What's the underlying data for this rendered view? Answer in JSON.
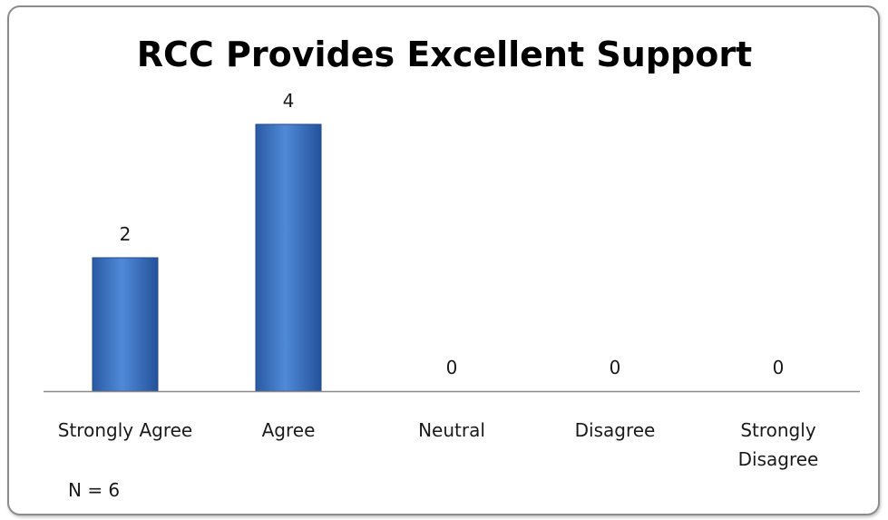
{
  "chart_data": {
    "type": "bar",
    "title": "RCC Provides Excellent Support",
    "categories": [
      "Strongly Agree",
      "Agree",
      "Neutral",
      "Disagree",
      "Strongly Disagree"
    ],
    "category_lines": [
      [
        "Strongly Agree"
      ],
      [
        "Agree"
      ],
      [
        "Neutral"
      ],
      [
        "Disagree"
      ],
      [
        "Strongly",
        "Disagree"
      ]
    ],
    "values": [
      2,
      4,
      0,
      0,
      0
    ],
    "data_labels": [
      "2",
      "4",
      "0",
      "0",
      "0"
    ],
    "ylim": [
      0,
      4
    ],
    "grid": false,
    "legend": "none",
    "bar_color": "#3a74c4",
    "annotation": "N = 6"
  }
}
